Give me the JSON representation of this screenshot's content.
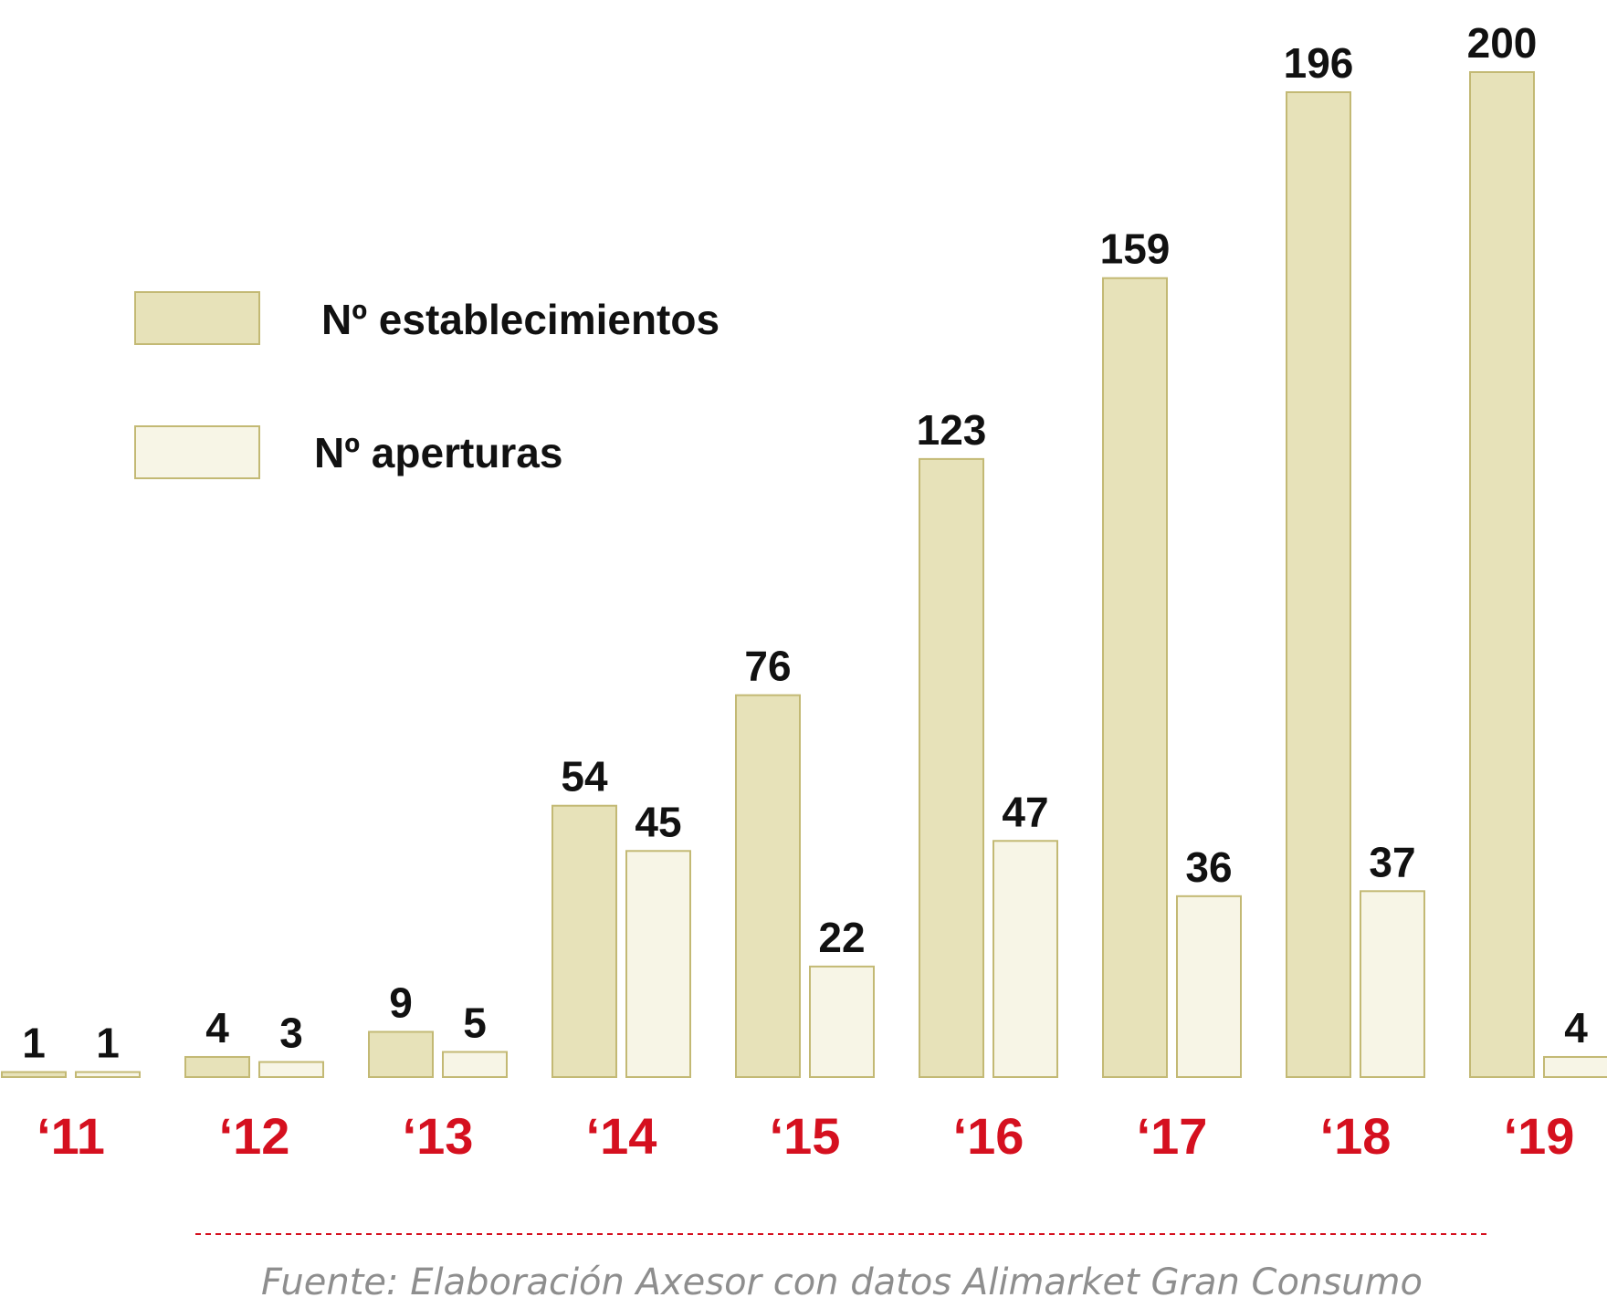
{
  "chart_data": {
    "type": "bar",
    "title": "",
    "xlabel": "",
    "ylabel": "",
    "ylim": [
      0,
      200
    ],
    "grid": false,
    "legend_position": "top-left",
    "categories": [
      "‘11",
      "‘12",
      "‘13",
      "‘14",
      "‘15",
      "‘16",
      "‘17",
      "‘18",
      "‘19"
    ],
    "series": [
      {
        "name": "Nº establecimientos",
        "key": "establecimientos",
        "color": "#e7e2b9",
        "values": [
          1,
          4,
          9,
          54,
          76,
          123,
          159,
          196,
          200
        ]
      },
      {
        "name": "Nº aperturas",
        "key": "aperturas",
        "color": "#f7f5e6",
        "values": [
          1,
          3,
          5,
          45,
          22,
          47,
          36,
          37,
          4
        ]
      }
    ],
    "source": "Fuente: Elaboración Axesor con datos Alimarket Gran Consumo"
  },
  "colors": {
    "year_labels": "#d5101f",
    "bar_stroke": "#c3b974",
    "source_text": "#8e8e8e"
  }
}
